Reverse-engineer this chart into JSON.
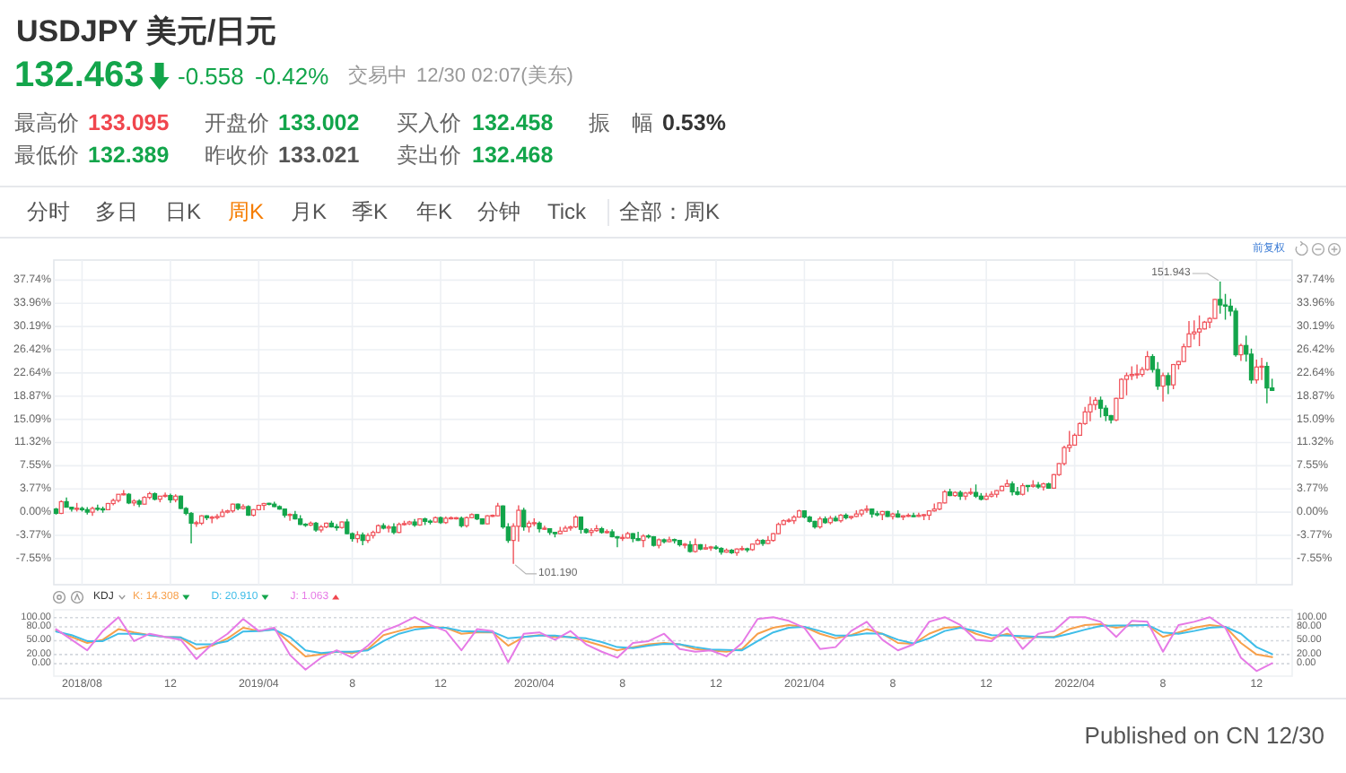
{
  "chart_data": [
    {
      "type": "candlestick",
      "title": "USDJPY 美元/日元",
      "annotations": [
        "132.463",
        "-0.558",
        "-0.42%",
        "交易中",
        "12/30 02:07(美东)",
        "最高价",
        "133.095",
        "开盘价",
        "133.002",
        "买入价",
        "132.458",
        "振　幅",
        "0.53%",
        "最低价",
        "132.389",
        "昨收价",
        "133.021",
        "卖出价",
        "132.468",
        "分时",
        "多日",
        "日K",
        "周K",
        "月K",
        "季K",
        "年K",
        "分钟",
        "Tick",
        "全部：周K",
        "前复权",
        {
          "text": "151.943",
          "x": "2022-10-17",
          "y": 37.5
        },
        {
          "text": "101.190",
          "x": "2020-03-09",
          "y": -8.4
        },
        "Published on CN 12/30"
      ],
      "x": [
        "2018-07-02",
        "2018-07-09",
        "2018-07-16",
        "2018-07-23",
        "2018-07-30",
        "2018-08-06",
        "2018-08-13",
        "2018-08-20",
        "2018-08-27",
        "2018-09-03",
        "2018-09-10",
        "2018-09-17",
        "2018-09-24",
        "2018-10-01",
        "2018-10-08",
        "2018-10-15",
        "2018-10-22",
        "2018-10-29",
        "2018-11-05",
        "2018-11-12",
        "2018-11-19",
        "2018-11-26",
        "2018-12-03",
        "2018-12-10",
        "2018-12-17",
        "2018-12-24",
        "2018-12-31",
        "2019-01-07",
        "2019-01-14",
        "2019-01-21",
        "2019-01-28",
        "2019-02-04",
        "2019-02-11",
        "2019-02-18",
        "2019-02-25",
        "2019-03-04",
        "2019-03-11",
        "2019-03-18",
        "2019-03-25",
        "2019-04-01",
        "2019-04-08",
        "2019-04-15",
        "2019-04-22",
        "2019-04-29",
        "2019-05-06",
        "2019-05-13",
        "2019-05-20",
        "2019-05-27",
        "2019-06-03",
        "2019-06-10",
        "2019-06-17",
        "2019-06-24",
        "2019-07-01",
        "2019-07-08",
        "2019-07-15",
        "2019-07-22",
        "2019-07-29",
        "2019-08-05",
        "2019-08-12",
        "2019-08-19",
        "2019-08-26",
        "2019-09-02",
        "2019-09-09",
        "2019-09-16",
        "2019-09-23",
        "2019-09-30",
        "2019-10-07",
        "2019-10-14",
        "2019-10-21",
        "2019-10-28",
        "2019-11-04",
        "2019-11-11",
        "2019-11-18",
        "2019-11-25",
        "2019-12-02",
        "2019-12-09",
        "2019-12-16",
        "2019-12-23",
        "2019-12-30",
        "2020-01-06",
        "2020-01-13",
        "2020-01-20",
        "2020-01-27",
        "2020-02-03",
        "2020-02-10",
        "2020-02-17",
        "2020-02-24",
        "2020-03-02",
        "2020-03-09",
        "2020-03-16",
        "2020-03-23",
        "2020-03-30",
        "2020-04-06",
        "2020-04-13",
        "2020-04-20",
        "2020-04-27",
        "2020-05-04",
        "2020-05-11",
        "2020-05-18",
        "2020-05-25",
        "2020-06-01",
        "2020-06-08",
        "2020-06-15",
        "2020-06-22",
        "2020-06-29",
        "2020-07-06",
        "2020-07-13",
        "2020-07-20",
        "2020-07-27",
        "2020-08-03",
        "2020-08-10",
        "2020-08-17",
        "2020-08-24",
        "2020-08-31",
        "2020-09-07",
        "2020-09-14",
        "2020-09-21",
        "2020-09-28",
        "2020-10-05",
        "2020-10-12",
        "2020-10-19",
        "2020-10-26",
        "2020-11-02",
        "2020-11-09",
        "2020-11-16",
        "2020-11-23",
        "2020-11-30",
        "2020-12-07",
        "2020-12-14",
        "2020-12-21",
        "2020-12-28",
        "2021-01-04",
        "2021-01-11",
        "2021-01-18",
        "2021-01-25",
        "2021-02-01",
        "2021-02-08",
        "2021-02-15",
        "2021-02-22",
        "2021-03-01",
        "2021-03-08",
        "2021-03-15",
        "2021-03-22",
        "2021-03-29",
        "2021-04-05",
        "2021-04-12",
        "2021-04-19",
        "2021-04-26",
        "2021-05-03",
        "2021-05-10",
        "2021-05-17",
        "2021-05-24",
        "2021-05-31",
        "2021-06-07",
        "2021-06-14",
        "2021-06-21",
        "2021-06-28",
        "2021-07-05",
        "2021-07-12",
        "2021-07-19",
        "2021-07-26",
        "2021-08-02",
        "2021-08-09",
        "2021-08-16",
        "2021-08-23",
        "2021-08-30",
        "2021-09-06",
        "2021-09-13",
        "2021-09-20",
        "2021-09-27",
        "2021-10-04",
        "2021-10-11",
        "2021-10-18",
        "2021-10-25",
        "2021-11-01",
        "2021-11-08",
        "2021-11-15",
        "2021-11-22",
        "2021-11-29",
        "2021-12-06",
        "2021-12-13",
        "2021-12-20",
        "2021-12-27",
        "2022-01-03",
        "2022-01-10",
        "2022-01-17",
        "2022-01-24",
        "2022-01-31",
        "2022-02-07",
        "2022-02-14",
        "2022-02-21",
        "2022-02-28",
        "2022-03-07",
        "2022-03-14",
        "2022-03-21",
        "2022-03-28",
        "2022-04-04",
        "2022-04-11",
        "2022-04-18",
        "2022-04-25",
        "2022-05-02",
        "2022-05-09",
        "2022-05-16",
        "2022-05-23",
        "2022-05-30",
        "2022-06-06",
        "2022-06-13",
        "2022-06-20",
        "2022-06-27",
        "2022-07-04",
        "2022-07-11",
        "2022-07-18",
        "2022-07-25",
        "2022-08-01",
        "2022-08-08",
        "2022-08-15",
        "2022-08-22",
        "2022-08-29",
        "2022-09-05",
        "2022-09-12",
        "2022-09-19",
        "2022-09-26",
        "2022-10-03",
        "2022-10-10",
        "2022-10-17",
        "2022-10-24",
        "2022-10-31",
        "2022-11-07",
        "2022-11-14",
        "2022-11-21",
        "2022-11-28",
        "2022-12-05",
        "2022-12-12",
        "2022-12-19",
        "2022-12-26"
      ],
      "ohlc": [
        [
          0.5,
          0.7,
          -0.4,
          -0.2
        ],
        [
          -0.2,
          1.9,
          -0.3,
          1.7
        ],
        [
          1.7,
          2.4,
          0.8,
          0.8
        ],
        [
          0.8,
          0.9,
          0.1,
          0.5
        ],
        [
          0.5,
          1.5,
          0.1,
          0.6
        ],
        [
          0.6,
          0.9,
          0.1,
          0.4
        ],
        [
          0.4,
          0.8,
          -0.4,
          0.0
        ],
        [
          0.0,
          0.9,
          -0.6,
          0.6
        ],
        [
          0.6,
          1.2,
          0.2,
          0.5
        ],
        [
          0.5,
          0.9,
          -0.1,
          0.4
        ],
        [
          0.4,
          1.5,
          0.4,
          1.4
        ],
        [
          1.4,
          2.2,
          1.1,
          1.9
        ],
        [
          1.9,
          2.9,
          1.6,
          2.9
        ],
        [
          2.9,
          3.6,
          2.7,
          2.9
        ],
        [
          2.9,
          3.1,
          1.3,
          1.5
        ],
        [
          1.5,
          2.1,
          1.0,
          1.8
        ],
        [
          1.8,
          2.1,
          0.8,
          1.3
        ],
        [
          1.3,
          2.6,
          1.2,
          2.4
        ],
        [
          2.4,
          3.3,
          2.1,
          3.0
        ],
        [
          3.0,
          3.2,
          1.9,
          2.1
        ],
        [
          2.1,
          2.6,
          1.6,
          2.6
        ],
        [
          2.6,
          3.2,
          2.4,
          2.7
        ],
        [
          2.7,
          3.0,
          1.5,
          2.0
        ],
        [
          2.0,
          2.9,
          1.6,
          2.6
        ],
        [
          2.6,
          2.7,
          0.5,
          0.6
        ],
        [
          0.6,
          0.8,
          -0.5,
          -0.2
        ],
        [
          -0.2,
          0.0,
          -5.1,
          -1.8
        ],
        [
          -1.8,
          -1.4,
          -2.4,
          -1.8
        ],
        [
          -1.8,
          -0.5,
          -2.1,
          -0.6
        ],
        [
          -0.6,
          -0.5,
          -1.3,
          -0.9
        ],
        [
          -0.9,
          -0.6,
          -1.8,
          -0.9
        ],
        [
          -0.9,
          -0.3,
          -1.2,
          -0.7
        ],
        [
          -0.7,
          0.5,
          -0.8,
          0.0
        ],
        [
          0.0,
          0.4,
          -0.2,
          0.2
        ],
        [
          0.2,
          1.4,
          -0.1,
          1.3
        ],
        [
          1.3,
          1.4,
          0.3,
          0.6
        ],
        [
          0.6,
          1.3,
          0.4,
          0.9
        ],
        [
          0.9,
          1.1,
          -0.6,
          -0.5
        ],
        [
          -0.5,
          0.5,
          -0.7,
          0.4
        ],
        [
          0.4,
          1.2,
          0.3,
          1.1
        ],
        [
          1.1,
          1.5,
          0.3,
          1.4
        ],
        [
          1.4,
          1.5,
          1.1,
          1.3
        ],
        [
          1.3,
          1.7,
          0.8,
          0.9
        ],
        [
          0.9,
          1.1,
          0.4,
          0.5
        ],
        [
          0.5,
          0.6,
          -0.9,
          -0.5
        ],
        [
          -0.5,
          -0.2,
          -1.4,
          -0.4
        ],
        [
          -0.4,
          0.2,
          -1.2,
          -1.1
        ],
        [
          -1.1,
          -0.5,
          -2.1,
          -2.0
        ],
        [
          -2.0,
          -1.8,
          -2.4,
          -2.1
        ],
        [
          -2.1,
          -1.5,
          -2.3,
          -1.8
        ],
        [
          -1.8,
          -1.6,
          -3.2,
          -2.9
        ],
        [
          -2.9,
          -2.1,
          -3.3,
          -2.4
        ],
        [
          -2.4,
          -1.7,
          -2.6,
          -1.8
        ],
        [
          -1.8,
          -1.4,
          -2.5,
          -2.4
        ],
        [
          -2.4,
          -1.9,
          -3.0,
          -2.5
        ],
        [
          -2.5,
          -1.5,
          -2.7,
          -1.6
        ],
        [
          -1.6,
          -1.1,
          -3.6,
          -3.5
        ],
        [
          -3.5,
          -3.3,
          -4.8,
          -4.3
        ],
        [
          -4.3,
          -3.1,
          -5.0,
          -3.7
        ],
        [
          -3.7,
          -3.3,
          -5.4,
          -4.6
        ],
        [
          -4.6,
          -3.4,
          -5.0,
          -3.8
        ],
        [
          -3.8,
          -3.0,
          -4.3,
          -3.3
        ],
        [
          -3.3,
          -2.0,
          -3.4,
          -2.2
        ],
        [
          -2.2,
          -1.8,
          -2.8,
          -2.6
        ],
        [
          -2.6,
          -2.1,
          -3.3,
          -2.4
        ],
        [
          -2.4,
          -1.8,
          -3.6,
          -3.3
        ],
        [
          -3.3,
          -1.7,
          -3.4,
          -2.0
        ],
        [
          -2.0,
          -1.4,
          -2.2,
          -1.9
        ],
        [
          -1.9,
          -1.4,
          -2.1,
          -1.6
        ],
        [
          -1.6,
          -1.1,
          -2.4,
          -2.1
        ],
        [
          -2.1,
          -1.0,
          -2.2,
          -1.1
        ],
        [
          -1.1,
          -0.9,
          -2.1,
          -1.5
        ],
        [
          -1.5,
          -1.2,
          -2.0,
          -1.6
        ],
        [
          -1.6,
          -0.7,
          -1.7,
          -0.9
        ],
        [
          -0.9,
          -0.7,
          -1.9,
          -1.7
        ],
        [
          -1.7,
          -0.7,
          -1.9,
          -1.0
        ],
        [
          -1.0,
          -0.7,
          -1.2,
          -1.0
        ],
        [
          -1.0,
          -0.8,
          -1.2,
          -1.0
        ],
        [
          -1.0,
          -0.7,
          -2.5,
          -2.2
        ],
        [
          -2.2,
          -0.7,
          -2.5,
          -0.9
        ],
        [
          -0.9,
          -0.2,
          -1.0,
          -0.4
        ],
        [
          -0.4,
          -0.3,
          -1.3,
          -1.1
        ],
        [
          -1.1,
          -1.0,
          -2.0,
          -1.9
        ],
        [
          -1.9,
          -0.5,
          -2.0,
          -0.6
        ],
        [
          -0.6,
          -0.4,
          -0.8,
          -0.6
        ],
        [
          -0.6,
          1.5,
          -0.7,
          1.0
        ],
        [
          1.0,
          1.1,
          -2.7,
          -2.4
        ],
        [
          -2.4,
          -1.8,
          -5.0,
          -4.6
        ],
        [
          -4.6,
          -1.8,
          -8.4,
          -2.3
        ],
        [
          -2.3,
          1.1,
          -4.8,
          0.3
        ],
        [
          0.3,
          0.7,
          -3.0,
          -2.4
        ],
        [
          -2.4,
          -1.4,
          -3.3,
          -1.8
        ],
        [
          -1.8,
          -1.0,
          -2.3,
          -1.8
        ],
        [
          -1.8,
          -1.5,
          -3.3,
          -2.7
        ],
        [
          -2.7,
          -2.2,
          -2.9,
          -2.7
        ],
        [
          -2.7,
          -2.6,
          -3.7,
          -3.3
        ],
        [
          -3.3,
          -3.2,
          -4.1,
          -3.5
        ],
        [
          -3.5,
          -2.4,
          -3.6,
          -3.1
        ],
        [
          -3.1,
          -2.2,
          -3.2,
          -2.6
        ],
        [
          -2.6,
          -2.2,
          -3.0,
          -2.4
        ],
        [
          -2.4,
          -0.5,
          -2.6,
          -0.8
        ],
        [
          -0.8,
          -0.7,
          -3.5,
          -2.8
        ],
        [
          -2.8,
          -2.6,
          -3.5,
          -3.3
        ],
        [
          -3.3,
          -2.6,
          -3.9,
          -3.0
        ],
        [
          -3.0,
          -2.1,
          -3.2,
          -2.7
        ],
        [
          -2.7,
          -2.4,
          -3.5,
          -3.3
        ],
        [
          -3.3,
          -2.8,
          -3.5,
          -3.2
        ],
        [
          -3.2,
          -2.8,
          -4.1,
          -4.0
        ],
        [
          -4.0,
          -3.9,
          -5.7,
          -4.2
        ],
        [
          -4.2,
          -3.6,
          -4.7,
          -4.2
        ],
        [
          -4.2,
          -3.2,
          -4.3,
          -3.5
        ],
        [
          -3.5,
          -3.4,
          -4.9,
          -4.3
        ],
        [
          -4.3,
          -3.2,
          -4.7,
          -4.6
        ],
        [
          -4.6,
          -3.6,
          -5.7,
          -3.9
        ],
        [
          -3.9,
          -3.6,
          -4.3,
          -4.0
        ],
        [
          -4.0,
          -3.9,
          -5.6,
          -5.4
        ],
        [
          -5.4,
          -4.3,
          -5.9,
          -4.5
        ],
        [
          -4.5,
          -4.3,
          -5.1,
          -4.8
        ],
        [
          -4.8,
          -4.0,
          -4.9,
          -4.5
        ],
        [
          -4.5,
          -4.3,
          -5.1,
          -4.6
        ],
        [
          -4.6,
          -4.5,
          -5.6,
          -5.3
        ],
        [
          -5.3,
          -5.0,
          -5.9,
          -5.3
        ],
        [
          -5.3,
          -4.7,
          -6.6,
          -6.4
        ],
        [
          -6.4,
          -4.3,
          -6.6,
          -5.3
        ],
        [
          -5.3,
          -5.2,
          -6.2,
          -6.0
        ],
        [
          -6.0,
          -5.2,
          -6.1,
          -5.8
        ],
        [
          -5.8,
          -5.5,
          -6.3,
          -5.7
        ],
        [
          -5.7,
          -5.4,
          -6.1,
          -5.9
        ],
        [
          -5.9,
          -5.7,
          -6.9,
          -6.5
        ],
        [
          -6.5,
          -5.9,
          -6.6,
          -6.2
        ],
        [
          -6.2,
          -6.0,
          -6.8,
          -6.6
        ],
        [
          -6.6,
          -5.9,
          -7.1,
          -6.0
        ],
        [
          -6.0,
          -5.5,
          -6.3,
          -6.0
        ],
        [
          -6.0,
          -5.8,
          -6.5,
          -6.1
        ],
        [
          -6.1,
          -5.1,
          -6.3,
          -5.2
        ],
        [
          -5.2,
          -4.3,
          -5.3,
          -4.6
        ],
        [
          -4.6,
          -4.4,
          -5.5,
          -5.1
        ],
        [
          -5.1,
          -3.9,
          -5.2,
          -4.6
        ],
        [
          -4.6,
          -3.4,
          -4.8,
          -3.5
        ],
        [
          -3.5,
          -1.7,
          -3.6,
          -2.0
        ],
        [
          -2.0,
          -1.2,
          -2.1,
          -1.4
        ],
        [
          -1.4,
          -1.0,
          -1.7,
          -1.4
        ],
        [
          -1.4,
          -0.5,
          -1.9,
          -0.8
        ],
        [
          -0.8,
          0.4,
          -0.9,
          0.2
        ],
        [
          0.2,
          0.3,
          -1.0,
          -0.8
        ],
        [
          -0.8,
          -0.6,
          -1.7,
          -1.5
        ],
        [
          -1.5,
          -1.4,
          -2.7,
          -2.4
        ],
        [
          -2.4,
          -0.7,
          -2.7,
          -1.1
        ],
        [
          -1.1,
          -0.7,
          -1.9,
          -1.7
        ],
        [
          -1.7,
          -0.6,
          -2.0,
          -1.0
        ],
        [
          -1.0,
          -0.6,
          -1.5,
          -1.4
        ],
        [
          -1.4,
          -0.3,
          -1.7,
          -0.5
        ],
        [
          -0.5,
          -0.2,
          -1.2,
          -0.9
        ],
        [
          -0.9,
          -0.6,
          -1.2,
          -0.7
        ],
        [
          -0.7,
          0.3,
          -0.8,
          -0.3
        ],
        [
          -0.3,
          0.5,
          -0.7,
          0.3
        ],
        [
          0.3,
          1.1,
          -0.1,
          0.5
        ],
        [
          0.5,
          0.6,
          -0.9,
          -0.3
        ],
        [
          -0.3,
          0.2,
          -0.7,
          -0.4
        ],
        [
          -0.4,
          0.2,
          -1.3,
          0.1
        ],
        [
          0.1,
          0.2,
          -0.8,
          -0.7
        ],
        [
          -0.7,
          -0.1,
          -1.2,
          -0.3
        ],
        [
          -0.3,
          0.3,
          -0.9,
          -0.8
        ],
        [
          -0.8,
          -0.5,
          -1.3,
          -0.6
        ],
        [
          -0.6,
          -0.2,
          -0.8,
          -0.6
        ],
        [
          -0.6,
          -0.1,
          -0.8,
          -0.7
        ],
        [
          -0.7,
          -0.1,
          -0.8,
          -0.5
        ],
        [
          -0.5,
          -0.3,
          -1.3,
          -0.5
        ],
        [
          -0.5,
          0.3,
          -1.3,
          0.2
        ],
        [
          0.2,
          1.4,
          0.1,
          0.5
        ],
        [
          0.5,
          1.6,
          0.3,
          1.5
        ],
        [
          1.5,
          3.6,
          1.4,
          3.3
        ],
        [
          3.3,
          3.8,
          2.6,
          2.7
        ],
        [
          2.7,
          3.4,
          2.5,
          3.2
        ],
        [
          3.2,
          3.5,
          2.0,
          2.6
        ],
        [
          2.6,
          3.3,
          2.0,
          3.1
        ],
        [
          3.1,
          3.9,
          2.8,
          3.2
        ],
        [
          3.2,
          4.5,
          2.3,
          2.6
        ],
        [
          2.6,
          3.1,
          1.9,
          2.1
        ],
        [
          2.1,
          3.1,
          2.0,
          2.6
        ],
        [
          2.6,
          3.4,
          2.4,
          2.9
        ],
        [
          2.9,
          3.6,
          2.4,
          3.5
        ],
        [
          3.5,
          4.3,
          3.4,
          4.2
        ],
        [
          4.2,
          5.3,
          4.1,
          4.6
        ],
        [
          4.6,
          5.0,
          2.7,
          3.3
        ],
        [
          3.3,
          4.1,
          2.7,
          2.9
        ],
        [
          2.9,
          4.7,
          2.7,
          4.3
        ],
        [
          4.3,
          4.4,
          3.3,
          4.2
        ],
        [
          4.2,
          5.2,
          4.0,
          4.4
        ],
        [
          4.4,
          4.9,
          3.8,
          4.1
        ],
        [
          4.1,
          4.8,
          3.5,
          4.6
        ],
        [
          4.6,
          4.8,
          3.8,
          3.9
        ],
        [
          3.9,
          6.2,
          3.8,
          6.1
        ],
        [
          6.1,
          8.0,
          5.9,
          7.9
        ],
        [
          7.9,
          10.8,
          7.6,
          10.5
        ],
        [
          10.5,
          13.2,
          9.8,
          10.9
        ],
        [
          10.9,
          12.8,
          10.8,
          12.5
        ],
        [
          12.5,
          14.6,
          12.4,
          14.4
        ],
        [
          14.4,
          17.1,
          14.2,
          16.3
        ],
        [
          16.3,
          18.8,
          14.8,
          17.5
        ],
        [
          17.5,
          18.7,
          16.6,
          18.2
        ],
        [
          18.2,
          18.8,
          15.4,
          16.9
        ],
        [
          16.9,
          17.4,
          14.8,
          15.7
        ],
        [
          15.7,
          15.8,
          14.4,
          15.0
        ],
        [
          15.0,
          18.6,
          14.8,
          18.5
        ],
        [
          18.5,
          21.8,
          18.4,
          21.6
        ],
        [
          21.6,
          22.7,
          19.0,
          22.2
        ],
        [
          22.2,
          23.7,
          21.5,
          22.4
        ],
        [
          22.4,
          24.0,
          21.7,
          22.4
        ],
        [
          22.4,
          23.6,
          22.0,
          23.2
        ],
        [
          23.2,
          26.2,
          23.0,
          25.3
        ],
        [
          25.3,
          25.7,
          22.7,
          23.2
        ],
        [
          23.2,
          24.4,
          19.9,
          20.5
        ],
        [
          20.5,
          22.7,
          18.0,
          22.2
        ],
        [
          22.2,
          22.7,
          19.2,
          20.7
        ],
        [
          20.7,
          24.1,
          20.0,
          24.0
        ],
        [
          24.0,
          24.6,
          23.2,
          24.5
        ],
        [
          24.5,
          27.4,
          24.4,
          26.9
        ],
        [
          26.9,
          31.1,
          26.8,
          29.0
        ],
        [
          29.0,
          31.2,
          28.1,
          29.3
        ],
        [
          29.3,
          32.0,
          27.0,
          29.8
        ],
        [
          29.8,
          31.1,
          29.7,
          30.9
        ],
        [
          30.9,
          31.7,
          29.9,
          31.5
        ],
        [
          31.5,
          34.7,
          31.4,
          34.6
        ],
        [
          34.6,
          37.5,
          32.3,
          33.7
        ],
        [
          33.7,
          35.5,
          31.3,
          33.5
        ],
        [
          33.5,
          34.7,
          31.9,
          32.7
        ],
        [
          32.7,
          33.2,
          25.3,
          25.6
        ],
        [
          25.6,
          27.4,
          24.6,
          27.1
        ],
        [
          27.1,
          28.7,
          24.5,
          25.7
        ],
        [
          25.7,
          26.6,
          20.9,
          21.5
        ],
        [
          21.5,
          24.8,
          20.9,
          23.6
        ],
        [
          23.6,
          25.1,
          21.5,
          23.7
        ],
        [
          23.7,
          24.4,
          17.7,
          20.2
        ],
        [
          20.2,
          21.7,
          19.7,
          19.8
        ]
      ],
      "xlim": [
        "2018-06-29",
        "2023-01-22"
      ],
      "xticks": [
        {
          "value": "2018-08-06",
          "label": null
        },
        {
          "value": "2018-12-03",
          "label": null
        },
        {
          "value": "2019-04-01",
          "label": null
        },
        {
          "value": "2019-08-05",
          "label": null
        },
        {
          "value": "2019-12-02",
          "label": null
        },
        {
          "value": "2020-04-06",
          "label": null
        },
        {
          "value": "2020-08-03",
          "label": null
        },
        {
          "value": "2020-12-07",
          "label": null
        },
        {
          "value": "2021-04-05",
          "label": null
        },
        {
          "value": "2021-08-02",
          "label": null
        },
        {
          "value": "2021-12-06",
          "label": null
        },
        {
          "value": "2022-04-04",
          "label": null
        },
        {
          "value": "2022-08-01",
          "label": null
        },
        {
          "value": "2022-12-05",
          "label": null
        }
      ],
      "tick_labels": "y",
      "ylim": [
        -11.8,
        41.0
      ],
      "yticks": [
        {
          "value": 37.74,
          "label": "37.74%"
        },
        {
          "value": 33.96,
          "label": "33.96%"
        },
        {
          "value": 30.19,
          "label": "30.19%"
        },
        {
          "value": 26.42,
          "label": "26.42%"
        },
        {
          "value": 22.64,
          "label": "22.64%"
        },
        {
          "value": 18.87,
          "label": "18.87%"
        },
        {
          "value": 15.09,
          "label": "15.09%"
        },
        {
          "value": 11.32,
          "label": "11.32%"
        },
        {
          "value": 7.55,
          "label": "7.55%"
        },
        {
          "value": 3.77,
          "label": "3.77%"
        },
        {
          "value": 0,
          "label": "0.00%"
        },
        {
          "value": -3.77,
          "label": "-3.77%"
        },
        {
          "value": -7.55,
          "label": "-7.55%"
        }
      ],
      "y2lim": [
        -11.8,
        41.0
      ],
      "y2ticks": [
        {
          "value": 37.74,
          "label": "37.74%"
        },
        {
          "value": 33.96,
          "label": "33.96%"
        },
        {
          "value": 30.19,
          "label": "30.19%"
        },
        {
          "value": 26.42,
          "label": "26.42%"
        },
        {
          "value": 22.64,
          "label": "22.64%"
        },
        {
          "value": 18.87,
          "label": "18.87%"
        },
        {
          "value": 15.09,
          "label": "15.09%"
        },
        {
          "value": 11.32,
          "label": "11.32%"
        },
        {
          "value": 7.55,
          "label": "7.55%"
        },
        {
          "value": 3.77,
          "label": "3.77%"
        },
        {
          "value": 0,
          "label": "0.00%"
        },
        {
          "value": -3.77,
          "label": "-3.77%"
        },
        {
          "value": -7.55,
          "label": "-7.55%"
        }
      ],
      "grid": true
    },
    {
      "type": "line",
      "title": "KDJ",
      "legend": "top left",
      "x": [
        "2018-07-02",
        "2018-07-23",
        "2018-08-13",
        "2018-09-03",
        "2018-09-24",
        "2018-10-15",
        "2018-11-05",
        "2018-11-26",
        "2018-12-17",
        "2019-01-07",
        "2019-01-28",
        "2019-02-18",
        "2019-03-11",
        "2019-04-01",
        "2019-04-22",
        "2019-05-13",
        "2019-06-03",
        "2019-06-24",
        "2019-07-15",
        "2019-08-05",
        "2019-08-26",
        "2019-09-16",
        "2019-10-07",
        "2019-10-28",
        "2019-11-18",
        "2019-12-09",
        "2019-12-30",
        "2020-01-20",
        "2020-02-10",
        "2020-03-02",
        "2020-03-23",
        "2020-04-13",
        "2020-05-04",
        "2020-05-25",
        "2020-06-15",
        "2020-07-06",
        "2020-07-27",
        "2020-08-17",
        "2020-09-07",
        "2020-09-28",
        "2020-10-19",
        "2020-11-09",
        "2020-11-30",
        "2020-12-21",
        "2021-01-11",
        "2021-02-01",
        "2021-02-22",
        "2021-03-15",
        "2021-04-05",
        "2021-04-26",
        "2021-05-17",
        "2021-06-07",
        "2021-06-28",
        "2021-07-19",
        "2021-08-09",
        "2021-08-30",
        "2021-09-20",
        "2021-10-11",
        "2021-11-01",
        "2021-11-22",
        "2021-12-13",
        "2022-01-03",
        "2022-01-24",
        "2022-02-14",
        "2022-03-07",
        "2022-03-28",
        "2022-04-18",
        "2022-05-09",
        "2022-05-30",
        "2022-06-20",
        "2022-07-11",
        "2022-08-01",
        "2022-08-22",
        "2022-09-12",
        "2022-10-03",
        "2022-10-24",
        "2022-11-14",
        "2022-12-05",
        "2022-12-26"
      ],
      "series": [
        {
          "name": "K: 14.308",
          "color": "#f7a04b",
          "values": [
            72,
            58,
            45,
            52,
            75,
            68,
            62,
            58,
            57,
            32,
            39,
            55,
            78,
            71,
            75,
            45,
            16,
            20,
            26,
            23,
            32,
            62,
            71,
            80,
            80,
            78,
            65,
            68,
            68,
            39,
            58,
            62,
            58,
            58,
            49,
            39,
            29,
            36,
            42,
            45,
            42,
            32,
            29,
            26,
            32,
            65,
            78,
            84,
            80,
            65,
            55,
            62,
            75,
            65,
            45,
            43,
            65,
            78,
            80,
            65,
            55,
            65,
            55,
            58,
            58,
            75,
            84,
            86,
            78,
            84,
            84,
            58,
            68,
            78,
            84,
            80,
            45,
            20,
            14.308
          ]
        },
        {
          "name": "D: 20.910",
          "color": "#3fbde8",
          "values": [
            70,
            62,
            49,
            49,
            65,
            65,
            62,
            58,
            57,
            42,
            42,
            49,
            70,
            71,
            74,
            58,
            29,
            23,
            26,
            26,
            29,
            49,
            65,
            74,
            78,
            78,
            71,
            70,
            69,
            55,
            58,
            61,
            61,
            57,
            55,
            47,
            36,
            34,
            39,
            43,
            42,
            36,
            31,
            30,
            29,
            49,
            68,
            78,
            80,
            71,
            61,
            61,
            66,
            65,
            52,
            44,
            55,
            71,
            78,
            71,
            62,
            61,
            60,
            58,
            57,
            65,
            74,
            82,
            83,
            83,
            84,
            68,
            65,
            71,
            78,
            80,
            65,
            36,
            20.91
          ]
        },
        {
          "name": "J: 1.063",
          "color": "#e67ae6",
          "values": [
            75,
            52,
            29,
            71,
            101,
            49,
            65,
            58,
            52,
            10,
            42,
            65,
            97,
            71,
            78,
            19,
            -13,
            13,
            29,
            13,
            39,
            71,
            84,
            101,
            84,
            71,
            29,
            75,
            71,
            3,
            65,
            68,
            52,
            71,
            42,
            26,
            13,
            45,
            49,
            65,
            32,
            26,
            29,
            16,
            45,
            97,
            101,
            93,
            78,
            32,
            36,
            71,
            91,
            52,
            29,
            42,
            91,
            101,
            84,
            52,
            49,
            78,
            32,
            65,
            71,
            101,
            101,
            91,
            58,
            93,
            91,
            26,
            84,
            91,
            101,
            78,
            13,
            -16,
            1.063
          ]
        }
      ],
      "xlim": [
        "2018-06-29",
        "2023-01-22"
      ],
      "xticks": [
        {
          "value": "2018-08-06",
          "label": "2018/08"
        },
        {
          "value": "2018-12-03",
          "label": "12"
        },
        {
          "value": "2019-04-01",
          "label": "2019/04"
        },
        {
          "value": "2019-08-05",
          "label": "8"
        },
        {
          "value": "2019-12-02",
          "label": "12"
        },
        {
          "value": "2020-04-06",
          "label": "2020/04"
        },
        {
          "value": "2020-08-03",
          "label": "8"
        },
        {
          "value": "2020-12-07",
          "label": "12"
        },
        {
          "value": "2021-04-05",
          "label": "2021/04"
        },
        {
          "value": "2021-08-02",
          "label": "8"
        },
        {
          "value": "2021-12-06",
          "label": "12"
        },
        {
          "value": "2022-04-04",
          "label": "2022/04"
        },
        {
          "value": "2022-08-01",
          "label": "8"
        },
        {
          "value": "2022-12-05",
          "label": "12"
        }
      ],
      "ylim": [
        -27,
        117
      ],
      "yticks": [
        {
          "value": 100,
          "label": "100.00"
        },
        {
          "value": 80,
          "label": "80.00"
        },
        {
          "value": 50,
          "label": "50.00"
        },
        {
          "value": 20,
          "label": "20.00"
        },
        {
          "value": 0,
          "label": "0.00"
        }
      ],
      "y2lim": [
        -27,
        117
      ],
      "y2ticks": [
        {
          "value": 100,
          "label": "100.00"
        },
        {
          "value": 80,
          "label": "80.00"
        },
        {
          "value": 50,
          "label": "50.00"
        },
        {
          "value": 20,
          "label": "20.00"
        },
        {
          "value": 0,
          "label": "0.00"
        }
      ],
      "grid": "y"
    }
  ]
}
